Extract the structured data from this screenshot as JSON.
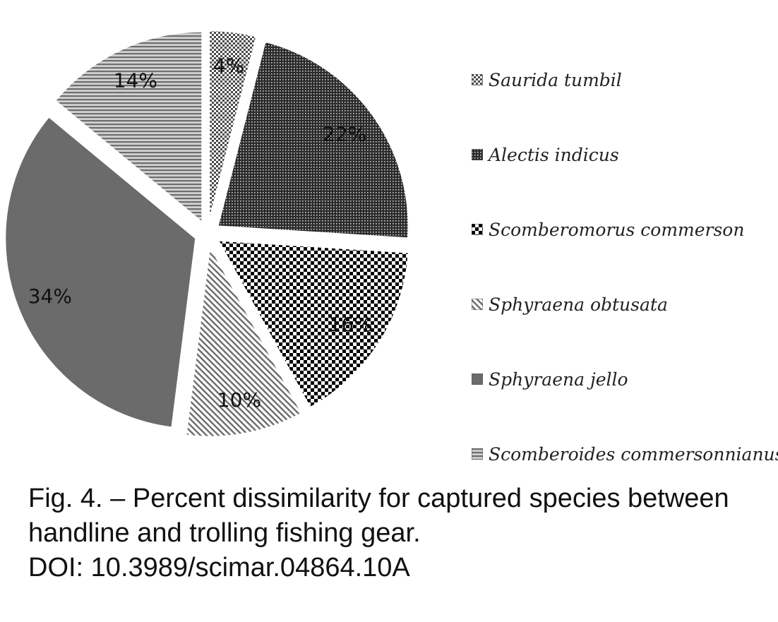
{
  "chart_data": {
    "type": "pie",
    "start_angle_deg": 0,
    "direction": "clockwise",
    "exploded": true,
    "legend_position": "right",
    "slices": [
      {
        "label": "Saurida tumbil",
        "value": 4,
        "value_label": "4%",
        "pattern": "checker-fine",
        "color": "#6e6e6e"
      },
      {
        "label": "Alectis indicus",
        "value": 22,
        "value_label": "22%",
        "pattern": "dots-dense",
        "color": "#3a3a3a"
      },
      {
        "label": "Scomberomorus commerson",
        "value": 16,
        "value_label": "16%",
        "pattern": "checker-large",
        "color": "#000000"
      },
      {
        "label": "Sphyraena obtusata",
        "value": 10,
        "value_label": "10%",
        "pattern": "diagonal-lines",
        "color": "#7a7a7a"
      },
      {
        "label": "Sphyraena jello",
        "value": 34,
        "value_label": "34%",
        "pattern": "solid",
        "color": "#6b6b6b"
      },
      {
        "label": "Scomberoides commersonnianus",
        "value": 14,
        "value_label": "14%",
        "pattern": "horizontal-lines",
        "color": "#858585"
      }
    ]
  },
  "caption": {
    "line1": "Fig. 4. – Percent dissimilarity for captured species between",
    "line2": "handline and trolling fishing gear.",
    "line3": "DOI: 10.3989/scimar.04864.10A"
  }
}
